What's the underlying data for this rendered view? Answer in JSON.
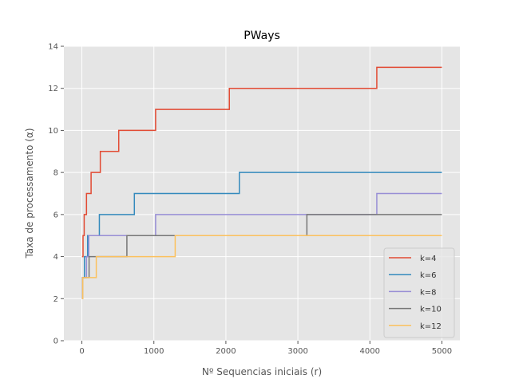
{
  "chart_data": {
    "type": "line",
    "title": "PWays",
    "xlabel": "Nº Sequencias iniciais (r)",
    "ylabel": "Taxa de processamento (α)",
    "xlim": [
      -250,
      5250
    ],
    "ylim": [
      0,
      14
    ],
    "xticks": [
      0,
      1000,
      2000,
      3000,
      4000,
      5000
    ],
    "yticks": [
      0,
      2,
      4,
      6,
      8,
      10,
      12,
      14
    ],
    "grid": true,
    "legend_position": "bottom-right",
    "step_style": "post",
    "series": [
      {
        "name": "k=4",
        "color": "#E24A33",
        "points": [
          [
            2,
            4
          ],
          [
            16,
            4
          ],
          [
            16,
            5
          ],
          [
            32,
            5
          ],
          [
            32,
            6
          ],
          [
            64,
            6
          ],
          [
            64,
            7
          ],
          [
            128,
            7
          ],
          [
            128,
            8
          ],
          [
            256,
            8
          ],
          [
            256,
            9
          ],
          [
            512,
            9
          ],
          [
            512,
            10
          ],
          [
            1024,
            10
          ],
          [
            1024,
            11
          ],
          [
            2048,
            11
          ],
          [
            2048,
            12
          ],
          [
            4096,
            12
          ],
          [
            4096,
            13
          ],
          [
            5000,
            13
          ]
        ]
      },
      {
        "name": "k=6",
        "color": "#348ABD",
        "points": [
          [
            2,
            3
          ],
          [
            36,
            3
          ],
          [
            36,
            4
          ],
          [
            80,
            4
          ],
          [
            80,
            5
          ],
          [
            243,
            5
          ],
          [
            243,
            6
          ],
          [
            729,
            6
          ],
          [
            729,
            7
          ],
          [
            2187,
            7
          ],
          [
            2187,
            8
          ],
          [
            5000,
            8
          ]
        ]
      },
      {
        "name": "k=8",
        "color": "#988ED5",
        "points": [
          [
            2,
            2
          ],
          [
            8,
            2
          ],
          [
            8,
            3
          ],
          [
            64,
            3
          ],
          [
            64,
            4
          ],
          [
            96,
            4
          ],
          [
            96,
            5
          ],
          [
            256,
            5
          ],
          [
            256,
            5
          ],
          [
            1024,
            5
          ],
          [
            1024,
            6
          ],
          [
            4096,
            6
          ],
          [
            4096,
            7
          ],
          [
            5000,
            7
          ]
        ]
      },
      {
        "name": "k=10",
        "color": "#777777",
        "points": [
          [
            2,
            2
          ],
          [
            10,
            2
          ],
          [
            10,
            3
          ],
          [
            100,
            3
          ],
          [
            100,
            4
          ],
          [
            125,
            4
          ],
          [
            125,
            4
          ],
          [
            625,
            4
          ],
          [
            625,
            5
          ],
          [
            3125,
            5
          ],
          [
            3125,
            6
          ],
          [
            5000,
            6
          ]
        ]
      },
      {
        "name": "k=12",
        "color": "#FBC15E",
        "points": [
          [
            2,
            2
          ],
          [
            12,
            2
          ],
          [
            12,
            3
          ],
          [
            200,
            3
          ],
          [
            200,
            4
          ],
          [
            216,
            4
          ],
          [
            216,
            4
          ],
          [
            1296,
            4
          ],
          [
            1296,
            5
          ],
          [
            5000,
            5
          ]
        ]
      }
    ]
  }
}
